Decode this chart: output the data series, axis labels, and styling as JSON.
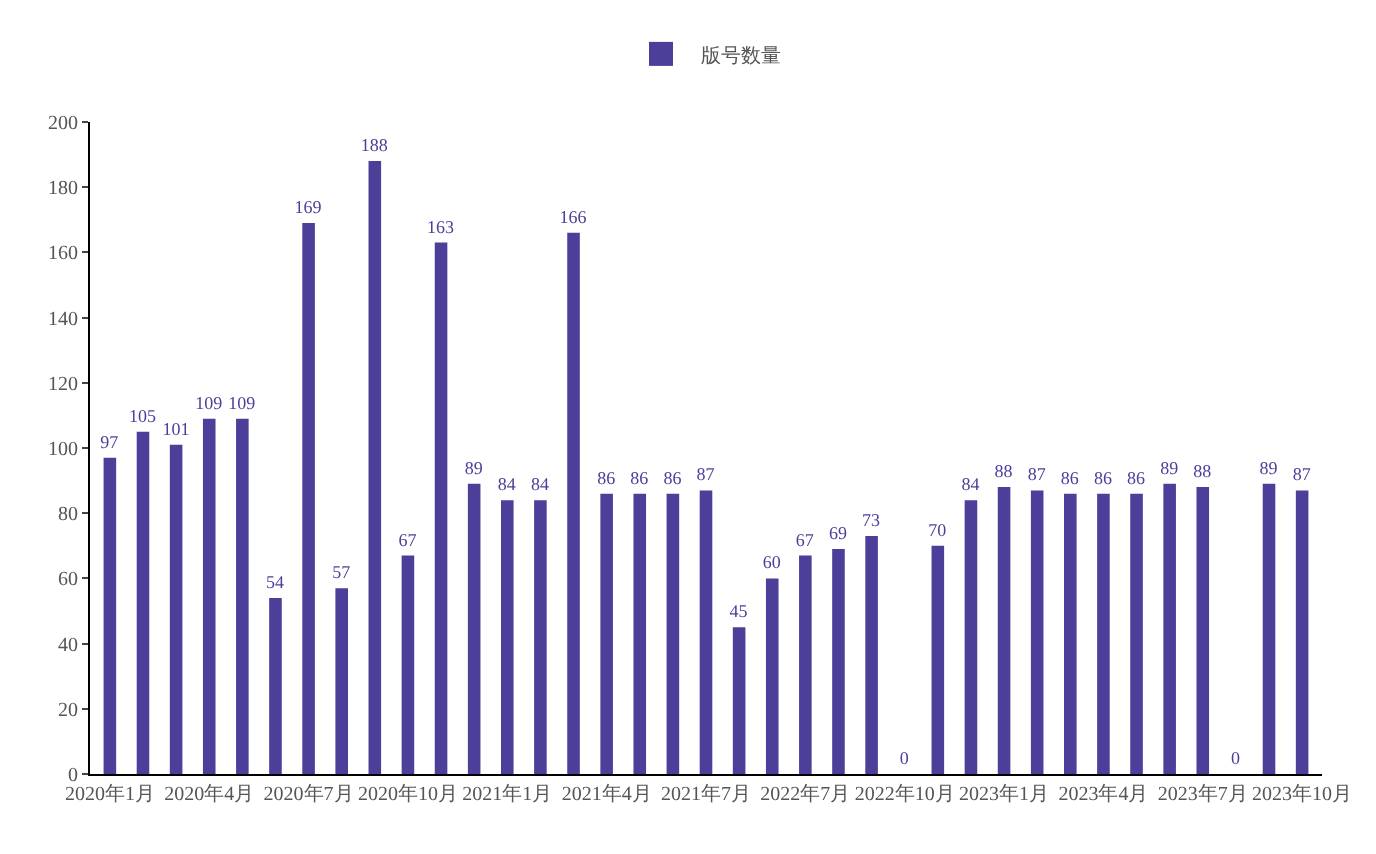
{
  "chart_data": {
    "type": "bar",
    "categories": [
      "2020年1月",
      null,
      null,
      "2020年4月",
      null,
      null,
      "2020年7月",
      null,
      null,
      "2020年10月",
      null,
      null,
      "2021年1月",
      null,
      null,
      "2021年4月",
      null,
      null,
      "2021年7月",
      null,
      null,
      "2022年7月",
      null,
      null,
      "2022年10月",
      null,
      null,
      "2023年1月",
      null,
      null,
      "2023年4月",
      null,
      null,
      "2023年7月",
      null,
      null,
      "2023年10月"
    ],
    "series": [
      {
        "name": "版号数量",
        "color": "#4b3f9a",
        "values": [
          97,
          105,
          101,
          109,
          109,
          54,
          169,
          57,
          188,
          67,
          163,
          89,
          84,
          84,
          166,
          86,
          86,
          86,
          87,
          45,
          60,
          67,
          69,
          73,
          0,
          70,
          84,
          88,
          87,
          86,
          86,
          86,
          89,
          88,
          0,
          89,
          87
        ]
      }
    ],
    "ylim": [
      0,
      200
    ],
    "yticks": [
      0,
      20,
      40,
      60,
      80,
      100,
      120,
      140,
      160,
      180,
      200
    ],
    "data_labels": true,
    "legend": "top"
  }
}
